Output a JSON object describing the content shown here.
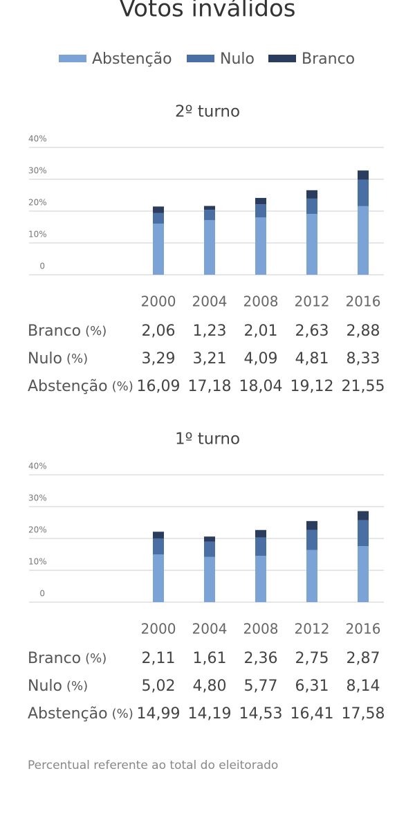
{
  "title": "Votos inválidos",
  "note": "Percentual referente ao total do eleitorado",
  "chart_data": [
    {
      "type": "bar",
      "stacked": true,
      "title": "2º turno",
      "unit_label": "(%)",
      "categories": [
        "2000",
        "2004",
        "2008",
        "2012",
        "2016"
      ],
      "ylim": [
        0,
        40
      ],
      "yticks": [
        0,
        {
          "value": 10,
          "label": "10%"
        },
        {
          "value": 20,
          "label": "20%"
        },
        {
          "value": 30,
          "label": "30%"
        },
        {
          "value": 40,
          "label": "40%"
        }
      ],
      "grid": true,
      "series": [
        {
          "name": "Abstenção",
          "color": "#7ba3d6",
          "values": [
            16.09,
            17.18,
            18.04,
            19.12,
            21.55
          ],
          "value_labels": [
            "16,09",
            "17,18",
            "18,04",
            "19,12",
            "21,55"
          ]
        },
        {
          "name": "Nulo",
          "color": "#4a6fa5",
          "values": [
            3.29,
            3.21,
            4.09,
            4.81,
            8.33
          ],
          "value_labels": [
            "3,29",
            "3,21",
            "4,09",
            "4,81",
            "8,33"
          ]
        },
        {
          "name": "Branco",
          "color": "#2b3d5e",
          "values": [
            2.06,
            1.23,
            2.01,
            2.63,
            2.88
          ],
          "value_labels": [
            "2,06",
            "1,23",
            "2,01",
            "2,63",
            "2,88"
          ]
        }
      ]
    },
    {
      "type": "bar",
      "stacked": true,
      "title": "1º turno",
      "unit_label": "(%)",
      "categories": [
        "2000",
        "2004",
        "2008",
        "2012",
        "2016"
      ],
      "ylim": [
        0,
        40
      ],
      "yticks": [
        0,
        {
          "value": 10,
          "label": "10%"
        },
        {
          "value": 20,
          "label": "20%"
        },
        {
          "value": 30,
          "label": "30%"
        },
        {
          "value": 40,
          "label": "40%"
        }
      ],
      "grid": true,
      "series": [
        {
          "name": "Abstenção",
          "color": "#7ba3d6",
          "values": [
            14.99,
            14.19,
            14.53,
            16.41,
            17.58
          ],
          "value_labels": [
            "14,99",
            "14,19",
            "14,53",
            "16,41",
            "17,58"
          ]
        },
        {
          "name": "Nulo",
          "color": "#4a6fa5",
          "values": [
            5.02,
            4.8,
            5.77,
            6.31,
            8.14
          ],
          "value_labels": [
            "5,02",
            "4,80",
            "5,77",
            "6,31",
            "8,14"
          ]
        },
        {
          "name": "Branco",
          "color": "#2b3d5e",
          "values": [
            2.11,
            1.61,
            2.36,
            2.75,
            2.87
          ],
          "value_labels": [
            "2,11",
            "1,61",
            "2,36",
            "2,75",
            "2,87"
          ]
        }
      ]
    }
  ]
}
